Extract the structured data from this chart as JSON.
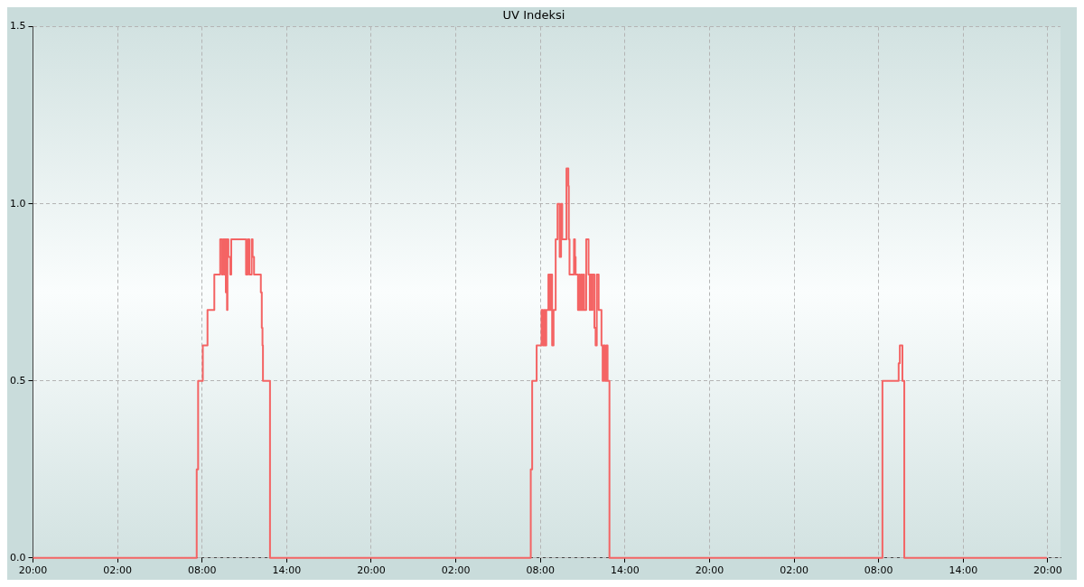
{
  "chart_data": {
    "type": "step",
    "title": "UV Indeksi",
    "xlim": [
      "--01-01T20:00",
      "--01-04T20:54"
    ],
    "ylim": [
      0,
      1.5
    ],
    "xticks": [
      {
        "value": "--01-01T20:00",
        "label": "20:00"
      },
      {
        "value": "--01-02T02:00",
        "label": "02:00"
      },
      {
        "value": "--01-02T08:00",
        "label": "08:00"
      },
      {
        "value": "--01-02T14:00",
        "label": "14:00"
      },
      {
        "value": "--01-02T20:00",
        "label": "20:00"
      },
      {
        "value": "--01-03T02:00",
        "label": "02:00"
      },
      {
        "value": "--01-03T08:00",
        "label": "08:00"
      },
      {
        "value": "--01-03T14:00",
        "label": "14:00"
      },
      {
        "value": "--01-03T20:00",
        "label": "20:00"
      },
      {
        "value": "--01-04T02:00",
        "label": "02:00"
      },
      {
        "value": "--01-04T08:00",
        "label": "08:00"
      },
      {
        "value": "--01-04T14:00",
        "label": "14:00"
      },
      {
        "value": "--01-04T20:00",
        "label": "20:00"
      }
    ],
    "yticks": [
      {
        "value": 0,
        "label": "0.0"
      },
      {
        "value": 0.5,
        "label": "0.5"
      },
      {
        "value": 1,
        "label": "1.0"
      },
      {
        "value": 1.5,
        "label": "1.5"
      }
    ],
    "grid": true,
    "line_style": "solid",
    "marker": "none",
    "series": [
      {
        "color": "#f46464",
        "x": [
          "--01-01T20:00",
          "--01-02T07:37",
          "--01-02T07:43",
          "--01-02T08:03",
          "--01-02T08:23",
          "--01-02T08:52",
          "--01-02T09:17",
          "--01-02T09:25",
          "--01-02T09:29",
          "--01-02T09:35",
          "--01-02T09:37",
          "--01-02T09:41",
          "--01-02T09:43",
          "--01-02T09:46",
          "--01-02T09:48",
          "--01-02T09:52",
          "--01-02T10:00",
          "--01-02T10:04",
          "--01-02T11:07",
          "--01-02T11:14",
          "--01-02T11:21",
          "--01-02T11:31",
          "--01-02T11:35",
          "--01-02T11:41",
          "--01-02T12:10",
          "--01-02T12:14",
          "--01-02T12:17",
          "--01-02T12:19",
          "--01-02T12:49",
          "--01-03T07:19",
          "--01-03T07:25",
          "--01-03T07:44",
          "--01-03T08:05",
          "--01-03T08:11",
          "--01-03T08:16",
          "--01-03T08:21",
          "--01-03T08:25",
          "--01-03T08:34",
          "--01-03T08:39",
          "--01-03T08:43",
          "--01-03T08:46",
          "--01-03T08:49",
          "--01-03T08:50",
          "--01-03T08:56",
          "--01-03T09:05",
          "--01-03T09:13",
          "--01-03T09:22",
          "--01-03T09:28",
          "--01-03T09:33",
          "--01-03T09:51",
          "--01-03T09:59",
          "--01-03T10:01",
          "--01-03T10:04",
          "--01-03T10:23",
          "--01-03T10:27",
          "--01-03T10:30",
          "--01-03T10:40",
          "--01-03T10:45",
          "--01-03T10:48",
          "--01-03T10:54",
          "--01-03T10:57",
          "--01-03T11:03",
          "--01-03T11:06",
          "--01-03T11:15",
          "--01-03T11:25",
          "--01-03T11:30",
          "--01-03T11:33",
          "--01-03T11:39",
          "--01-03T11:42",
          "--01-03T11:50",
          "--01-03T11:55",
          "--01-03T12:00",
          "--01-03T12:08",
          "--01-03T12:20",
          "--01-03T12:25",
          "--01-03T12:29",
          "--01-03T12:35",
          "--01-03T12:41",
          "--01-03T12:46",
          "--01-03T12:54",
          "--01-04T08:16",
          "--01-04T09:25",
          "--01-04T09:30",
          "--01-04T09:41",
          "--01-04T09:49",
          "--01-04T19:56"
        ],
        "values": [
          0,
          0.25,
          0.5,
          0.6,
          0.7,
          0.8,
          0.9,
          0.8,
          0.9,
          0.8,
          0.9,
          0.75,
          0.9,
          0.7,
          0.9,
          0.85,
          0.8,
          0.9,
          0.8,
          0.9,
          0.8,
          0.9,
          0.85,
          0.8,
          0.75,
          0.65,
          0.6,
          0.5,
          0,
          0.25,
          0.5,
          0.6,
          0.7,
          0.6,
          0.7,
          0.6,
          0.7,
          0.8,
          0.7,
          0.8,
          0.7,
          0.8,
          0.6,
          0.7,
          0.9,
          1.0,
          0.85,
          1.0,
          0.9,
          1.1,
          1.05,
          0.9,
          0.8,
          0.9,
          0.85,
          0.8,
          0.7,
          0.8,
          0.7,
          0.8,
          0.7,
          0.8,
          0.7,
          0.9,
          0.8,
          0.7,
          0.8,
          0.7,
          0.8,
          0.65,
          0.6,
          0.8,
          0.7,
          0.6,
          0.5,
          0.6,
          0.5,
          0.6,
          0.5,
          0,
          0.5,
          0.55,
          0.6,
          0.5,
          0,
          0
        ]
      }
    ]
  }
}
